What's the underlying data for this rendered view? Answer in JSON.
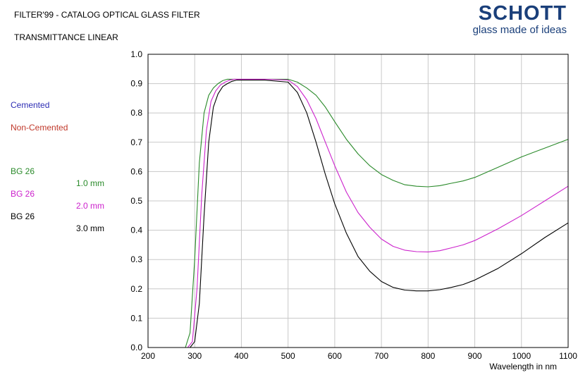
{
  "header": {
    "title": "FILTER'99 - CATALOG OPTICAL GLASS FILTER",
    "subtitle": "TRANSMITTANCE LINEAR"
  },
  "logo": {
    "brand": "SCHOTT",
    "tagline": "glass made of ideas"
  },
  "legend": {
    "cemented": {
      "label": "Cemented",
      "color": "#2d2db4"
    },
    "non_cemented": {
      "label": "Non-Cemented",
      "color": "#c0392b"
    },
    "entries": [
      {
        "name": "BG 26",
        "thickness": "1.0 mm",
        "color": "#2a8a2a"
      },
      {
        "name": "BG 26",
        "thickness": "2.0 mm",
        "color": "#cc22cc"
      },
      {
        "name": "BG 26",
        "thickness": "3.0 mm",
        "color": "#000000"
      }
    ]
  },
  "chart_data": {
    "type": "line",
    "xlabel": "Wavelength in nm",
    "ylabel": "",
    "xlim": [
      200,
      1100
    ],
    "ylim": [
      0.0,
      1.0
    ],
    "xticks": [
      "200",
      "300",
      "400",
      "500",
      "600",
      "700",
      "800",
      "900",
      "1000",
      "1100"
    ],
    "yticks": [
      "0.0",
      "0.1",
      "0.2",
      "0.3",
      "0.4",
      "0.5",
      "0.6",
      "0.7",
      "0.8",
      "0.9",
      "1.0"
    ],
    "grid": true,
    "series": [
      {
        "name": "BG 26 1.0 mm",
        "color": "#2a8a2a",
        "x": [
          280,
          290,
          300,
          310,
          320,
          330,
          340,
          350,
          360,
          370,
          380,
          400,
          450,
          500,
          520,
          540,
          560,
          580,
          600,
          625,
          650,
          675,
          700,
          725,
          750,
          775,
          800,
          825,
          850,
          875,
          900,
          950,
          1000,
          1050,
          1100
        ],
        "y": [
          0.0,
          0.05,
          0.3,
          0.63,
          0.8,
          0.86,
          0.885,
          0.9,
          0.91,
          0.915,
          0.915,
          0.915,
          0.915,
          0.915,
          0.905,
          0.885,
          0.86,
          0.82,
          0.77,
          0.71,
          0.66,
          0.62,
          0.59,
          0.57,
          0.555,
          0.55,
          0.548,
          0.552,
          0.56,
          0.568,
          0.58,
          0.615,
          0.65,
          0.68,
          0.71
        ]
      },
      {
        "name": "BG 26 2.0 mm",
        "color": "#cc22cc",
        "x": [
          285,
          295,
          305,
          315,
          325,
          335,
          345,
          355,
          365,
          375,
          385,
          400,
          450,
          500,
          520,
          540,
          560,
          580,
          600,
          625,
          650,
          675,
          700,
          725,
          750,
          775,
          800,
          825,
          850,
          875,
          900,
          950,
          1000,
          1050,
          1100
        ],
        "y": [
          0.0,
          0.02,
          0.2,
          0.52,
          0.74,
          0.84,
          0.875,
          0.895,
          0.905,
          0.912,
          0.915,
          0.915,
          0.915,
          0.912,
          0.89,
          0.845,
          0.78,
          0.7,
          0.62,
          0.53,
          0.46,
          0.41,
          0.37,
          0.345,
          0.332,
          0.327,
          0.326,
          0.33,
          0.34,
          0.35,
          0.365,
          0.405,
          0.45,
          0.5,
          0.55
        ]
      },
      {
        "name": "BG 26 3.0 mm",
        "color": "#000000",
        "x": [
          290,
          300,
          310,
          320,
          330,
          340,
          350,
          360,
          370,
          380,
          390,
          400,
          450,
          500,
          520,
          540,
          560,
          580,
          600,
          625,
          650,
          675,
          700,
          725,
          750,
          775,
          800,
          825,
          850,
          875,
          900,
          950,
          1000,
          1050,
          1100
        ],
        "y": [
          0.0,
          0.02,
          0.15,
          0.45,
          0.7,
          0.82,
          0.865,
          0.89,
          0.9,
          0.908,
          0.912,
          0.912,
          0.912,
          0.905,
          0.87,
          0.8,
          0.7,
          0.59,
          0.49,
          0.39,
          0.31,
          0.26,
          0.225,
          0.205,
          0.196,
          0.193,
          0.193,
          0.197,
          0.205,
          0.215,
          0.23,
          0.27,
          0.32,
          0.375,
          0.425
        ]
      }
    ]
  }
}
